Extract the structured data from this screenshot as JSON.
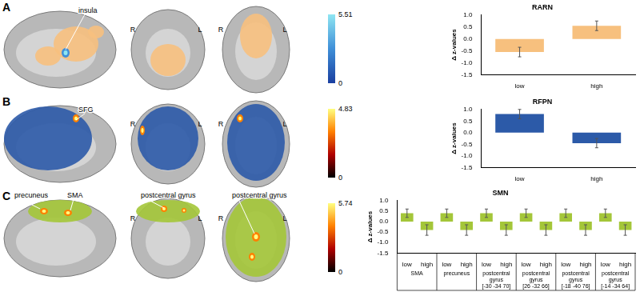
{
  "figure": {
    "panels": [
      {
        "label": "A",
        "annotations": [
          "insula"
        ],
        "orientation_labels": [
          "R",
          "L"
        ],
        "color": "#f7c07e",
        "colorbar": {
          "range": [
            0,
            5.51
          ],
          "ticks": [
            0,
            5.51
          ],
          "colors": [
            "#1a3fa0",
            "#3f8fd8",
            "#8fe6f2"
          ]
        }
      },
      {
        "label": "B",
        "annotations": [
          "SFG"
        ],
        "orientation_labels": [
          "R",
          "L"
        ],
        "color": "#2c5aa8",
        "colorbar": {
          "range": [
            0,
            4.83
          ],
          "ticks": [
            0,
            4.83
          ],
          "colors": [
            "#000000",
            "#b00000",
            "#ff8000",
            "#ffff80"
          ]
        }
      },
      {
        "label": "C",
        "annotations": [
          "precuneus",
          "SMA",
          "postcentral gyrus",
          "postcentral gyrus"
        ],
        "orientation_labels": [
          "R",
          "L"
        ],
        "color": "#a4c639",
        "colorbar": {
          "range": [
            0,
            5.74
          ],
          "ticks": [
            0,
            5.74
          ],
          "colors": [
            "#000000",
            "#b00000",
            "#ff8000",
            "#ffff80"
          ]
        }
      }
    ]
  },
  "chart_data": [
    {
      "type": "bar",
      "title": "RARN",
      "y_label": "Δ z-values",
      "color": "#f7c07e",
      "grid": false,
      "categories": [
        "low",
        "high"
      ],
      "values": [
        -0.55,
        0.55
      ],
      "errors": [
        0.2,
        0.2
      ],
      "ylim": [
        -1.5,
        1.0
      ],
      "yticks": [
        -1.5,
        {
          "value": -1.0,
          "label": "-1.0"
        },
        -0.5,
        {
          "value": 0,
          "label": "0.0"
        },
        0.5,
        {
          "value": 1.0,
          "label": "1.0"
        }
      ]
    },
    {
      "type": "bar",
      "title": "RFPN",
      "y_label": "Δ z-values",
      "color": "#2c5aa8",
      "grid": false,
      "categories": [
        "low",
        "high"
      ],
      "values": [
        0.8,
        -0.45
      ],
      "errors": [
        0.2,
        0.2
      ],
      "ylim": [
        -1.5,
        1.0
      ],
      "yticks": [
        -1.5,
        {
          "value": -1.0,
          "label": "-1.0"
        },
        -0.5,
        {
          "value": 0,
          "label": "0.0"
        },
        0.5,
        {
          "value": 1.0,
          "label": "1.0"
        }
      ]
    },
    {
      "type": "bar",
      "title": "SMN",
      "y_label": "Δ z-values",
      "color": "#a4c639",
      "grid": false,
      "groups": [
        {
          "name": [
            "SMA"
          ],
          "categories": [
            "low",
            "high"
          ],
          "values": [
            0.4,
            -0.4
          ],
          "errors": [
            0.2,
            0.25
          ]
        },
        {
          "name": [
            "precuneus"
          ],
          "categories": [
            "low",
            "high"
          ],
          "values": [
            0.4,
            -0.4
          ],
          "errors": [
            0.2,
            0.25
          ]
        },
        {
          "name": [
            "postcentral",
            "gyrus",
            "[-30 -34 70]"
          ],
          "categories": [
            "low",
            "high"
          ],
          "values": [
            0.4,
            -0.4
          ],
          "errors": [
            0.2,
            0.25
          ]
        },
        {
          "name": [
            "postcentral",
            "gyrus",
            "[26 -32 66]"
          ],
          "categories": [
            "low",
            "high"
          ],
          "values": [
            0.4,
            -0.4
          ],
          "errors": [
            0.2,
            0.25
          ]
        },
        {
          "name": [
            "postcentral",
            "gyrus",
            "[-18 -40 76]"
          ],
          "categories": [
            "low",
            "high"
          ],
          "values": [
            0.4,
            -0.4
          ],
          "errors": [
            0.2,
            0.25
          ]
        },
        {
          "name": [
            "postcentral",
            "gyrus",
            "[-14 -34 64]"
          ],
          "categories": [
            "low",
            "high"
          ],
          "values": [
            0.4,
            -0.4
          ],
          "errors": [
            0.2,
            0.25
          ]
        }
      ],
      "ylim": [
        -1.5,
        1.0
      ],
      "yticks": [
        -1.5,
        {
          "value": -1.0,
          "label": "-1.0"
        },
        -0.5,
        {
          "value": 0,
          "label": "0.0"
        },
        0.5,
        {
          "value": 1.0,
          "label": "1.0"
        }
      ]
    }
  ]
}
